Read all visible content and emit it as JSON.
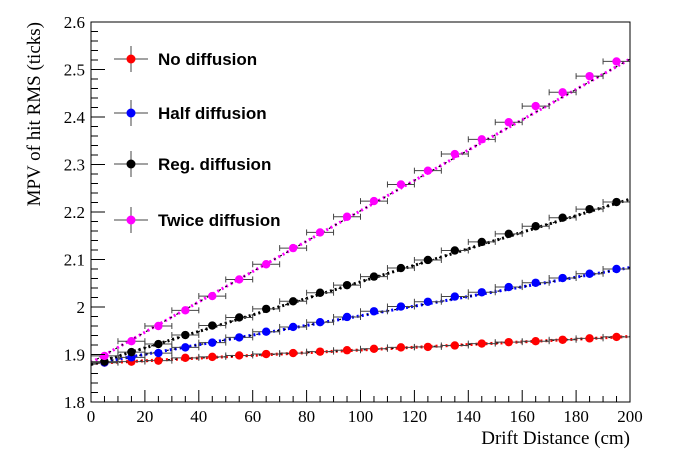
{
  "chart_data": {
    "type": "scatter",
    "xlabel": "Drift Distance (cm)",
    "ylabel": "MPV of hit RMS (ticks)",
    "xlim": [
      0,
      200
    ],
    "ylim": [
      1.8,
      2.6
    ],
    "x_ticks": [
      "0",
      "20",
      "40",
      "60",
      "80",
      "100",
      "120",
      "140",
      "160",
      "180",
      "200"
    ],
    "y_ticks": [
      "1.8",
      "1.9",
      "2",
      "2.1",
      "2.2",
      "2.3",
      "2.4",
      "2.5",
      "2.6"
    ],
    "grid": false,
    "legend_position": "top-left",
    "x_error": 5,
    "x": [
      5,
      15,
      25,
      35,
      45,
      55,
      65,
      75,
      85,
      95,
      105,
      115,
      125,
      135,
      145,
      155,
      165,
      175,
      185,
      195
    ],
    "series": [
      {
        "name": "No diffusion",
        "color": "#ff0000",
        "values": [
          1.883,
          1.885,
          1.887,
          1.893,
          1.895,
          1.898,
          1.901,
          1.903,
          1.906,
          1.909,
          1.912,
          1.915,
          1.916,
          1.919,
          1.923,
          1.926,
          1.928,
          1.931,
          1.934,
          1.937
        ],
        "fit": [
          1.881,
          1.938
        ]
      },
      {
        "name": "Half diffusion",
        "color": "#0000ff",
        "values": [
          1.883,
          1.894,
          1.903,
          1.915,
          1.925,
          1.936,
          1.948,
          1.958,
          1.968,
          1.979,
          1.991,
          2.001,
          2.011,
          2.022,
          2.031,
          2.042,
          2.051,
          2.061,
          2.07,
          2.08
        ],
        "fit": [
          1.88,
          2.083
        ]
      },
      {
        "name": "Reg. diffusion",
        "color": "#000000",
        "values": [
          1.885,
          1.905,
          1.922,
          1.941,
          1.961,
          1.978,
          1.996,
          2.012,
          2.03,
          2.046,
          2.064,
          2.082,
          2.099,
          2.119,
          2.137,
          2.154,
          2.17,
          2.188,
          2.206,
          2.221
        ],
        "fit": [
          1.879,
          2.227
        ]
      },
      {
        "name": "Twice diffusion",
        "color": "#ff00ff",
        "values": [
          1.897,
          1.928,
          1.96,
          1.993,
          2.023,
          2.058,
          2.09,
          2.124,
          2.157,
          2.19,
          2.223,
          2.258,
          2.287,
          2.322,
          2.353,
          2.389,
          2.423,
          2.452,
          2.486,
          2.517
        ],
        "fit": [
          1.883,
          2.522
        ]
      }
    ]
  }
}
